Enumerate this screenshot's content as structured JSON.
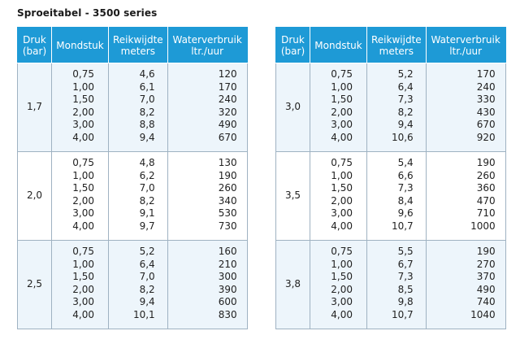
{
  "title": "Sproeitabel - 3500 series",
  "headers": {
    "druk_line1": "Druk",
    "druk_line2": "(bar)",
    "mondstuk": "Mondstuk",
    "reik_line1": "Reikwijdte",
    "reik_line2": "meters",
    "water_line1": "Waterverbruik",
    "water_line2": "ltr./uur"
  },
  "tables": [
    {
      "groups": [
        {
          "druk": "1,7",
          "mondstuk": [
            "0,75",
            "1,00",
            "1,50",
            "2,00",
            "3,00",
            "4,00"
          ],
          "reikwijdte": [
            "4,6",
            "6,1",
            "7,0",
            "8,2",
            "8,8",
            "9,4"
          ],
          "waterverbruik": [
            "120",
            "170",
            "240",
            "320",
            "490",
            "670"
          ]
        },
        {
          "druk": "2,0",
          "mondstuk": [
            "0,75",
            "1,00",
            "1,50",
            "2,00",
            "3,00",
            "4,00"
          ],
          "reikwijdte": [
            "4,8",
            "6,2",
            "7,0",
            "8,2",
            "9,1",
            "9,7"
          ],
          "waterverbruik": [
            "130",
            "190",
            "260",
            "340",
            "530",
            "730"
          ]
        },
        {
          "druk": "2,5",
          "mondstuk": [
            "0,75",
            "1,00",
            "1,50",
            "2,00",
            "3,00",
            "4,00"
          ],
          "reikwijdte": [
            "5,2",
            "6,4",
            "7,0",
            "8,2",
            "9,4",
            "10,1"
          ],
          "waterverbruik": [
            "160",
            "210",
            "300",
            "390",
            "600",
            "830"
          ]
        }
      ]
    },
    {
      "groups": [
        {
          "druk": "3,0",
          "mondstuk": [
            "0,75",
            "1,00",
            "1,50",
            "2,00",
            "3,00",
            "4,00"
          ],
          "reikwijdte": [
            "5,2",
            "6,4",
            "7,3",
            "8,2",
            "9,4",
            "10,6"
          ],
          "waterverbruik": [
            "170",
            "240",
            "330",
            "430",
            "670",
            "920"
          ]
        },
        {
          "druk": "3,5",
          "mondstuk": [
            "0,75",
            "1,00",
            "1,50",
            "2,00",
            "3,00",
            "4,00"
          ],
          "reikwijdte": [
            "5,4",
            "6,6",
            "7,3",
            "8,4",
            "9,6",
            "10,7"
          ],
          "waterverbruik": [
            "190",
            "260",
            "360",
            "470",
            "710",
            "1000"
          ]
        },
        {
          "druk": "3,8",
          "mondstuk": [
            "0,75",
            "1,00",
            "1,50",
            "2,00",
            "3,00",
            "4,00"
          ],
          "reikwijdte": [
            "5,5",
            "6,7",
            "7,3",
            "8,5",
            "9,8",
            "10,7"
          ],
          "waterverbruik": [
            "190",
            "270",
            "370",
            "490",
            "740",
            "1040"
          ]
        }
      ]
    }
  ],
  "colors": {
    "header_bg": "#1e9ad6",
    "row_tint": "#edf5fb",
    "border": "#9fb2c2"
  }
}
